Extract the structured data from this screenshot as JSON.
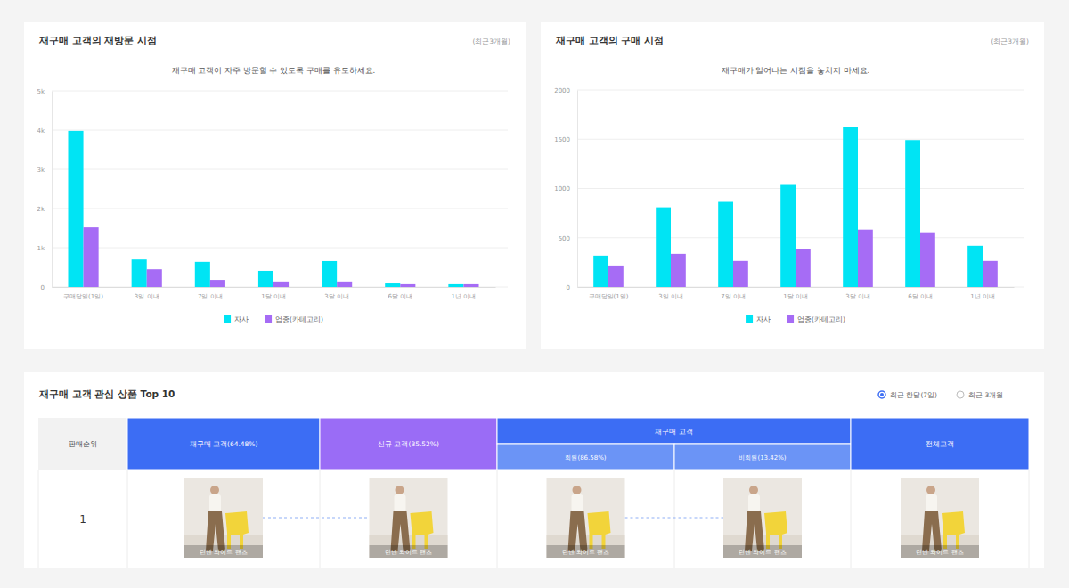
{
  "chart_data": [
    {
      "type": "bar",
      "title": "재구매 고객의 재방문 시점",
      "annotation": "(최근3개월)",
      "subtitle": "재구매 고객이 자주 방문할 수 있도록 구매를 유도하세요.",
      "categories": [
        "구매당일(1일)",
        "3일 이내",
        "7일 이내",
        "1달 이내",
        "3달 이내",
        "6달 이내",
        "1년 이내"
      ],
      "series": [
        {
          "name": "자사",
          "color": "#00e4f4",
          "values": [
            3980,
            700,
            640,
            410,
            660,
            90,
            70
          ]
        },
        {
          "name": "업종(카테고리)",
          "color": "#a66cf5",
          "values": [
            1520,
            450,
            180,
            140,
            140,
            70,
            70
          ]
        }
      ],
      "ylim": [
        0,
        5000
      ],
      "yticks": [
        0,
        {
          "value": 1000,
          "label": "1k"
        },
        {
          "value": 2000,
          "label": "2k"
        },
        {
          "value": 3000,
          "label": "3k"
        },
        {
          "value": 4000,
          "label": "4k"
        },
        {
          "value": 5000,
          "label": "5k"
        }
      ],
      "grid": true,
      "legend": "bottom"
    },
    {
      "type": "bar",
      "title": "재구매 고객의 구매 시점",
      "annotation": "(최근3개월)",
      "subtitle": "재구매가 일어나는 시점을 놓치지 마세요.",
      "categories": [
        "구매당일(1일)",
        "3일 이내",
        "7일 이내",
        "1달 이내",
        "3달 이내",
        "6달 이내",
        "1년 이내"
      ],
      "series": [
        {
          "name": "자사",
          "color": "#00e4f4",
          "values": [
            318,
            809,
            864,
            1036,
            1627,
            1491,
            418
          ]
        },
        {
          "name": "업종(카테고리)",
          "color": "#a66cf5",
          "values": [
            209,
            336,
            264,
            382,
            582,
            555,
            264
          ]
        }
      ],
      "ylim": [
        0,
        2000
      ],
      "yticks": [
        0,
        500,
        1000,
        1500,
        2000
      ],
      "grid": true,
      "legend": "bottom"
    }
  ],
  "table": {
    "title": "재구매 고객 관심 상품 Top 10",
    "options": [
      {
        "label": "최근 한달(7일)",
        "selected": true
      },
      {
        "label": "최근 3개월",
        "selected": false
      }
    ],
    "rank_header": "판매순위",
    "columns": [
      {
        "label": "재구매 고객(64.48%)",
        "color": "#3c6df4"
      },
      {
        "label": "신규 고객(35.52%)",
        "color": "#9a6cf6"
      },
      {
        "label": "재구매 고객",
        "color": "#3c6df4",
        "sub": [
          {
            "label": "회원(86.58%)",
            "color": "#6b94f6"
          },
          {
            "label": "비회원(13.42%)",
            "color": "#6b94f6"
          }
        ]
      },
      {
        "label": "전체고객",
        "color": "#3c6df4"
      }
    ],
    "rows": [
      {
        "rank": 1,
        "products": [
          "린넨 와이드 팬츠",
          "린넨 와이드 팬츠",
          "린넨 와이드 팬츠",
          "린넨 와이드 팬츠",
          "린넨 와이드 팬츠"
        ]
      }
    ]
  }
}
